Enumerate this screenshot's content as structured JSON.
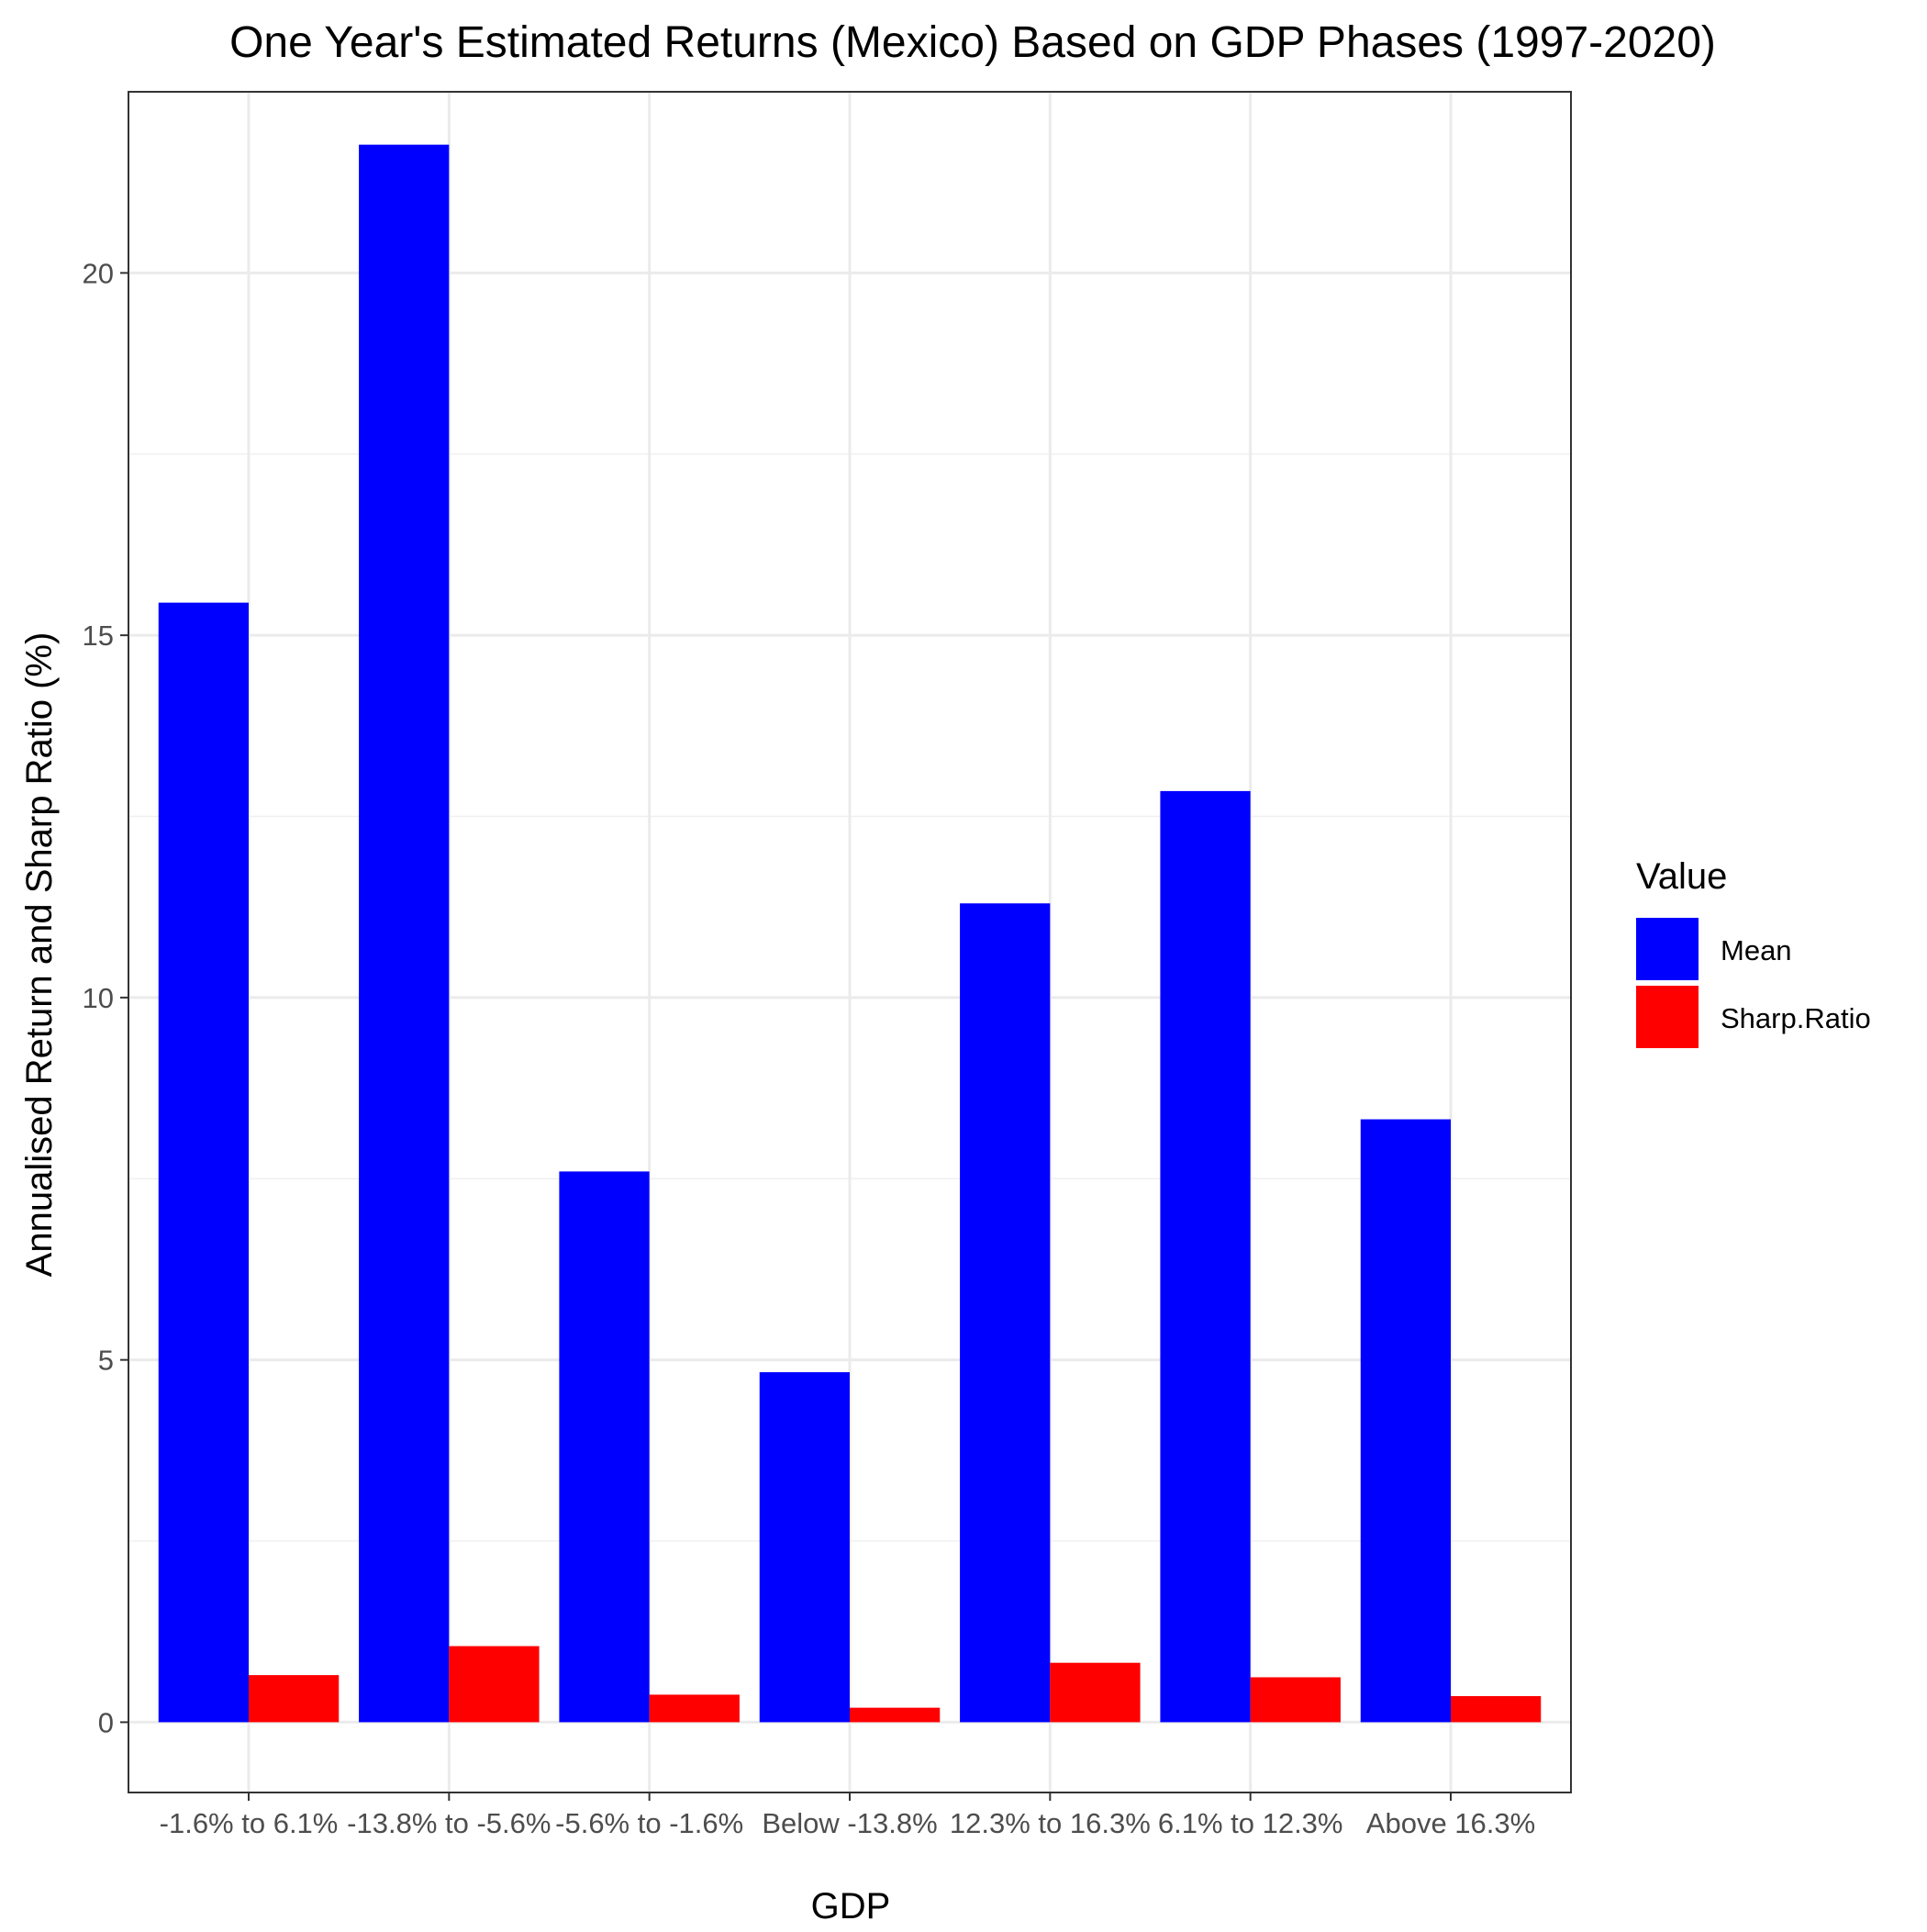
{
  "chart_data": {
    "type": "bar",
    "title": "One Year's Estimated Returns (Mexico) Based on GDP Phases (1997-2020)",
    "xlabel": "GDP",
    "ylabel": "Annualised Return and Sharp Ratio (%)",
    "categories": [
      "-1.6% to 6.1%",
      "-13.8% to -5.6%",
      "-5.6% to -1.6%",
      "Below -13.8%",
      "12.3% to 16.3%",
      "6.1% to 12.3%",
      "Above 16.3%"
    ],
    "series": [
      {
        "name": "Mean",
        "color": "#0000FF",
        "values": [
          15.45,
          21.77,
          7.6,
          4.83,
          11.3,
          12.85,
          8.32
        ]
      },
      {
        "name": "Sharp.Ratio",
        "color": "#FF0000",
        "values": [
          0.65,
          1.05,
          0.38,
          0.2,
          0.82,
          0.62,
          0.36
        ]
      }
    ],
    "ylim": [
      -0.97,
      22.5
    ],
    "yticks": [
      0,
      5,
      10,
      15,
      20
    ],
    "grid": true,
    "legend": {
      "title": "Value",
      "position": "right"
    }
  }
}
